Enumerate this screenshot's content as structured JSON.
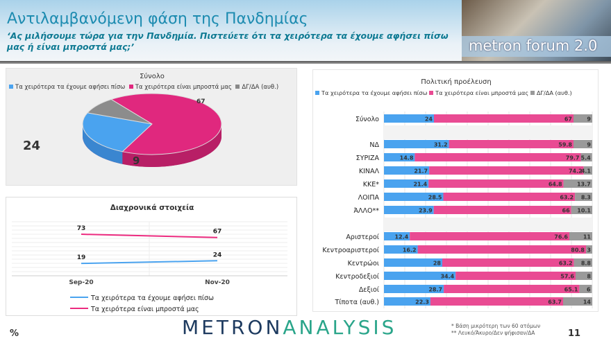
{
  "header": {
    "title": "Αντιλαμβανόμενη φάση της Πανδημίας",
    "subtitle": "‘Ας μιλήσουμε τώρα για την Πανδημία. Πιστεύετε ότι τα χειρότερα τα έχουμε αφήσει πίσω μας ή είναι μπροστά μας;’",
    "logo_text": "metron forum 2.0"
  },
  "colors": {
    "behind": "#4aa3ef",
    "ahead": "#e94b93",
    "dk": "#9a9a9a",
    "pie_ahead": "#e0287e",
    "line_ahead": "#ec2a7f"
  },
  "legend": [
    "Τα χειρότερα τα έχουμε αφήσει πίσω",
    "Τα χειρότερα είναι μπροστά μας",
    "ΔΓ/ΔΑ (αυθ.)"
  ],
  "chart_data": [
    {
      "type": "pie",
      "title": "Σύνολο",
      "categories": [
        "Τα χειρότερα τα έχουμε αφήσει πίσω",
        "Τα χειρότερα είναι μπροστά μας",
        "ΔΓ/ΔΑ (αυθ.)"
      ],
      "values": [
        24,
        67,
        9
      ],
      "legend_position": "top"
    },
    {
      "type": "line",
      "title": "Διαχρονικά στοιχεία",
      "x": [
        "Sep-20",
        "Nov-20"
      ],
      "series": [
        {
          "name": "Τα χειρότερα τα έχουμε αφήσει πίσω",
          "values": [
            19,
            24
          ]
        },
        {
          "name": "Τα χειρότερα είναι μπροστά μας",
          "values": [
            73,
            67
          ]
        }
      ],
      "grid": true,
      "legend_position": "bottom"
    },
    {
      "type": "bar",
      "stacked": true,
      "orientation": "horizontal",
      "title": "Πολιτική προέλευση",
      "legend_position": "top",
      "xlim": [
        0,
        100
      ],
      "categories": [
        "Σύνολο",
        "",
        "ΝΔ",
        "ΣΥΡΙΖΑ",
        "ΚΙΝΑΛ",
        "ΚΚΕ*",
        "ΛΟΙΠΑ",
        "ΆΛΛΟ**",
        "",
        "Αριστεροί",
        "Κεντροαριστεροί",
        "Κεντρώοι",
        "Κεντροδεξιοί",
        "Δεξιοί",
        "Τίποτα (αυθ.)"
      ],
      "series": [
        {
          "name": "Τα χειρότερα τα έχουμε αφήσει πίσω",
          "values": [
            24,
            null,
            31.2,
            14.8,
            21.7,
            21.4,
            28.5,
            23.9,
            null,
            12.4,
            16.2,
            28,
            34.4,
            28.7,
            22.3
          ]
        },
        {
          "name": "Τα χειρότερα είναι μπροστά μας",
          "values": [
            67,
            null,
            59.8,
            79.7,
            74.2,
            64.8,
            63.2,
            66,
            null,
            76.6,
            80.8,
            63.2,
            57.6,
            65.1,
            63.7
          ]
        },
        {
          "name": "ΔΓ/ΔΑ (αυθ.)",
          "values": [
            9,
            null,
            9,
            5.4,
            4.1,
            13.7,
            8.3,
            10.1,
            null,
            11,
            3,
            8.8,
            8,
            6,
            14
          ]
        }
      ]
    }
  ],
  "footer": {
    "unit": "%",
    "brand_1": "METRON",
    "brand_2": "ANALYSIS",
    "note_1": "* Βάση μικρότερη των 60 ατόμων",
    "note_2": "** Λευκό/Άκυρο/Δεν ψήφισαν/ΔΑ",
    "page": "11"
  }
}
